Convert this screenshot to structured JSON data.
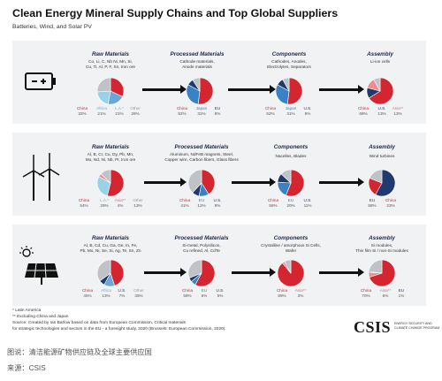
{
  "header": {
    "title": "Clean Energy Mineral Supply Chains and Top Global Suppliers",
    "subtitle": "Batteries, Wind, and Solar PV"
  },
  "colors": {
    "China": "#d32630",
    "Europe_Africa": "#6aa7d8",
    "Latin_America": "#9bd1e8",
    "US": "#1f3a6e",
    "Japan": "#3b82c4",
    "Asia": "#ee8e8e",
    "Other": "#bfc3c8",
    "panel": "#f1f2f4"
  },
  "stage_titles": {
    "raw": "Raw Materials",
    "processed": "Processed Materials",
    "components": "Components",
    "assembly": "Assembly"
  },
  "rows": [
    {
      "icon": "battery-icon",
      "stages": [
        {
          "key": "raw",
          "desc": [
            "Co, Li, C, Nb Ni, Mn, Si,",
            "Cu, Ti, Al, P, F, Sn, Iron ore"
          ],
          "slices": [
            {
              "name": "China",
              "value": 32,
              "label": "32%",
              "color": "#d32630"
            },
            {
              "name": "Africa",
              "value": 21,
              "label": "21%",
              "color": "#6aa7d8"
            },
            {
              "name": "L.A.*",
              "value": 21,
              "label": "21%",
              "color": "#9bd1e8"
            },
            {
              "name": "Other",
              "value": 26,
              "label": "26%",
              "color": "#bfc3c8"
            }
          ]
        },
        {
          "key": "processed",
          "desc": [
            "Cathode materials,",
            "Anode materials"
          ],
          "slices": [
            {
              "name": "China",
              "value": 52,
              "label": "52%",
              "color": "#d32630"
            },
            {
              "name": "Japan",
              "value": 31,
              "label": "31%",
              "color": "#3b82c4"
            },
            {
              "name": "EU",
              "value": 8,
              "label": "8%",
              "color": "#1f3a6e"
            },
            {
              "name": "",
              "value": 9,
              "label": "",
              "color": "#bfc3c8"
            }
          ]
        },
        {
          "key": "components",
          "desc": [
            "Cathodes, Anodes,",
            "Electrolytes, Separators"
          ],
          "slices": [
            {
              "name": "China",
              "value": 52,
              "label": "52%",
              "color": "#d32630"
            },
            {
              "name": "Japan",
              "value": 31,
              "label": "31%",
              "color": "#3b82c4"
            },
            {
              "name": "U.S.",
              "value": 9,
              "label": "9%",
              "color": "#1f3a6e"
            },
            {
              "name": "",
              "value": 8,
              "label": "",
              "color": "#bfc3c8"
            }
          ]
        },
        {
          "key": "assembly",
          "desc": [
            "Li-ion cells"
          ],
          "slices": [
            {
              "name": "China",
              "value": 66,
              "label": "66%",
              "color": "#d32630"
            },
            {
              "name": "U.S.",
              "value": 13,
              "label": "13%",
              "color": "#1f3a6e"
            },
            {
              "name": "Asia**",
              "value": 13,
              "label": "13%",
              "color": "#ee8e8e"
            },
            {
              "name": "",
              "value": 8,
              "label": "",
              "color": "#bfc3c8"
            }
          ]
        }
      ]
    },
    {
      "icon": "wind-turbine-icon",
      "stages": [
        {
          "key": "raw",
          "desc": [
            "Al, B, Cr, Cu, Dy, Pb, Mn,",
            "Mo, Nd, Ni, Nb, Pr, Iron ore"
          ],
          "slices": [
            {
              "name": "China",
              "value": 54,
              "label": "54%",
              "color": "#d32630"
            },
            {
              "name": "L.A.*",
              "value": 29,
              "label": "29%",
              "color": "#9bd1e8"
            },
            {
              "name": "Asia**",
              "value": 4,
              "label": "4%",
              "color": "#ee8e8e"
            },
            {
              "name": "Other",
              "value": 13,
              "label": "13%",
              "color": "#bfc3c8"
            }
          ]
        },
        {
          "key": "processed",
          "desc": [
            "Aluminum, NdFeB magnets, Steel,",
            "Copper wire, Carbon fibers, Glass fibers"
          ],
          "slices": [
            {
              "name": "China",
              "value": 41,
              "label": "41%",
              "color": "#d32630"
            },
            {
              "name": "EU",
              "value": 12,
              "label": "12%",
              "color": "#3b82c4"
            },
            {
              "name": "U.S.",
              "value": 9,
              "label": "9%",
              "color": "#1f3a6e"
            },
            {
              "name": "",
              "value": 38,
              "label": "",
              "color": "#bfc3c8"
            }
          ]
        },
        {
          "key": "components",
          "desc": [
            "Nacelles, Blades"
          ],
          "slices": [
            {
              "name": "China",
              "value": 56,
              "label": "56%",
              "color": "#d32630"
            },
            {
              "name": "EU",
              "value": 20,
              "label": "20%",
              "color": "#3b82c4"
            },
            {
              "name": "U.S.",
              "value": 11,
              "label": "11%",
              "color": "#1f3a6e"
            },
            {
              "name": "",
              "value": 13,
              "label": "",
              "color": "#bfc3c8"
            }
          ]
        },
        {
          "key": "assembly",
          "desc": [
            "Wind turbines"
          ],
          "slices": [
            {
              "name": "EU",
              "value": 58,
              "label": "58%",
              "color": "#1f3a6e"
            },
            {
              "name": "China",
              "value": 23,
              "label": "23%",
              "color": "#d32630"
            },
            {
              "name": "",
              "value": 19,
              "label": "",
              "color": "#bfc3c8"
            }
          ]
        }
      ]
    },
    {
      "icon": "solar-panel-icon",
      "stages": [
        {
          "key": "raw",
          "desc": [
            "Al, B, Cd, Cu, Ga, Ge, In, Fe,",
            "Pb, Mo, Ni, Se, Si, Ag, Te, Sn, Zn"
          ],
          "slices": [
            {
              "name": "China",
              "value": 45,
              "label": "45%",
              "color": "#d32630"
            },
            {
              "name": "Africa",
              "value": 13,
              "label": "13%",
              "color": "#6aa7d8"
            },
            {
              "name": "U.S.",
              "value": 7,
              "label": "7%",
              "color": "#1f3a6e"
            },
            {
              "name": "Other",
              "value": 35,
              "label": "35%",
              "color": "#bfc3c8"
            }
          ]
        },
        {
          "key": "processed",
          "desc": [
            "Si-metal, Polysilicon,",
            "Cu refined, Al, CdTe"
          ],
          "slices": [
            {
              "name": "China",
              "value": 58,
              "label": "58%",
              "color": "#d32630"
            },
            {
              "name": "EU",
              "value": 6,
              "label": "6%",
              "color": "#3b82c4"
            },
            {
              "name": "U.S.",
              "value": 5,
              "label": "5%",
              "color": "#1f3a6e"
            },
            {
              "name": "",
              "value": 31,
              "label": "",
              "color": "#bfc3c8"
            }
          ]
        },
        {
          "key": "components",
          "desc": [
            "Crystalline / amorphous Si Cells,",
            "Wafer"
          ],
          "slices": [
            {
              "name": "China",
              "value": 89,
              "label": "89%",
              "color": "#d32630"
            },
            {
              "name": "Asia**",
              "value": 3,
              "label": "3%",
              "color": "#ee8e8e"
            },
            {
              "name": "",
              "value": 8,
              "label": "",
              "color": "#bfc3c8"
            }
          ]
        },
        {
          "key": "assembly",
          "desc": [
            "Si modules,",
            "Thin film Si / non-Si modules"
          ],
          "slices": [
            {
              "name": "China",
              "value": 70,
              "label": "70%",
              "color": "#d32630"
            },
            {
              "name": "Asia**",
              "value": 6,
              "label": "6%",
              "color": "#ee8e8e"
            },
            {
              "name": "EU",
              "value": 1,
              "label": "1%",
              "color": "#1f3a6e"
            },
            {
              "name": "",
              "value": 23,
              "label": "",
              "color": "#bfc3c8"
            }
          ]
        }
      ]
    }
  ],
  "footer": {
    "notes": [
      "* Latin America",
      "** Excluding China and Japan",
      "Source: Created by Ian Barlow based on data from European Commission, Critical materials",
      "for strategic technologies and sectors in the EU - a foresight study, 2020 (Brussels: European Commission, 2020)."
    ],
    "brand": "CSIS",
    "brand_sub": [
      "ENERGY SECURITY AND",
      "CLIMATE CHANGE PROGRAM"
    ]
  },
  "caption": {
    "line1": "图说：清洁能源矿物供应链及全球主要供应国",
    "line2": "来源：CSIS"
  }
}
